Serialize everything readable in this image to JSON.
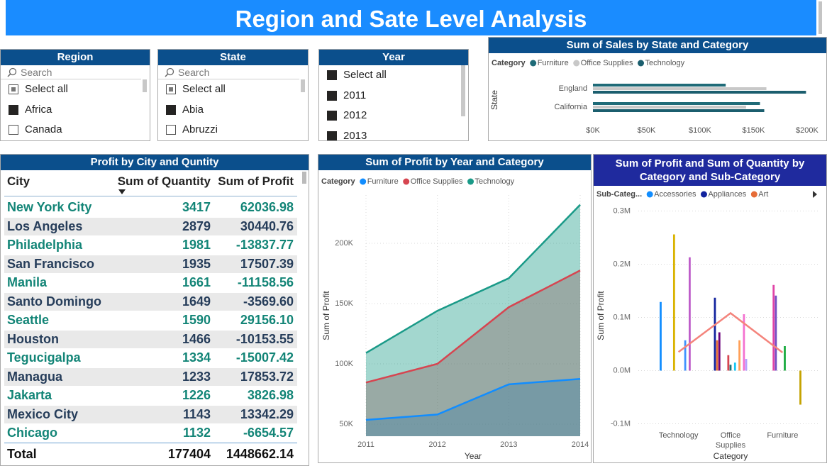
{
  "header": {
    "title": "Region and Sate Level Analysis"
  },
  "slicers": [
    {
      "title": "Region",
      "search": "Search",
      "items": [
        {
          "label": "Select all",
          "state": "partial"
        },
        {
          "label": "Africa",
          "state": "checked"
        },
        {
          "label": "Canada",
          "state": "unchecked"
        }
      ]
    },
    {
      "title": "State",
      "search": "Search",
      "items": [
        {
          "label": "Select all",
          "state": "partial"
        },
        {
          "label": "Abia",
          "state": "checked"
        },
        {
          "label": "Abruzzi",
          "state": "unchecked"
        }
      ]
    },
    {
      "title": "Year",
      "items": [
        {
          "label": "Select all",
          "state": "checked"
        },
        {
          "label": "2011",
          "state": "checked"
        },
        {
          "label": "2012",
          "state": "checked"
        },
        {
          "label": "2013",
          "state": "checked"
        }
      ]
    }
  ],
  "table": {
    "title": "Profit by City and Quntity",
    "columns": [
      "City",
      "Sum of Quantity",
      "Sum of Profit"
    ],
    "sort_column": 1,
    "rows": [
      [
        "New York City",
        "3417",
        "62036.98"
      ],
      [
        "Los Angeles",
        "2879",
        "30440.76"
      ],
      [
        "Philadelphia",
        "1981",
        "-13837.77"
      ],
      [
        "San Francisco",
        "1935",
        "17507.39"
      ],
      [
        "Manila",
        "1661",
        "-11158.56"
      ],
      [
        "Santo Domingo",
        "1649",
        "-3569.60"
      ],
      [
        "Seattle",
        "1590",
        "29156.10"
      ],
      [
        "Houston",
        "1466",
        "-10153.55"
      ],
      [
        "Tegucigalpa",
        "1334",
        "-15007.42"
      ],
      [
        "Managua",
        "1233",
        "17853.72"
      ],
      [
        "Jakarta",
        "1226",
        "3826.98"
      ],
      [
        "Mexico City",
        "1143",
        "13342.29"
      ],
      [
        "Chicago",
        "1132",
        "-6654.57"
      ]
    ],
    "total": [
      "Total",
      "177404",
      "1448662.14"
    ]
  },
  "chart_data": [
    {
      "type": "bar",
      "orientation": "horizontal",
      "title": "Sum of Sales by State and Category",
      "legend_title": "Category",
      "y_label": "State",
      "categories": [
        "England",
        "California"
      ],
      "series": [
        {
          "name": "Furniture",
          "color": "#1f6b78",
          "values": [
            124000,
            156000
          ]
        },
        {
          "name": "Office Supplies",
          "color": "#c8c8c8",
          "values": [
            162000,
            143000
          ]
        },
        {
          "name": "Technology",
          "color": "#1b5e6e",
          "values": [
            199000,
            160000
          ]
        }
      ],
      "xlim": [
        0,
        210000
      ],
      "xticks": [
        {
          "value": 0,
          "label": "$0K"
        },
        {
          "value": 50000,
          "label": "$50K"
        },
        {
          "value": 100000,
          "label": "$100K"
        },
        {
          "value": 150000,
          "label": "$150K"
        },
        {
          "value": 200000,
          "label": "$200K"
        }
      ],
      "grid": false
    },
    {
      "type": "area",
      "stacked": false,
      "title": "Sum of Profit by Year and Category",
      "legend_title": "Category",
      "x_label": "Year",
      "y_label": "Sum of Profit",
      "x": [
        2011,
        2012,
        2013,
        2014
      ],
      "series": [
        {
          "name": "Furniture",
          "color": "#118dff",
          "values": [
            53500,
            58000,
            83000,
            87500
          ]
        },
        {
          "name": "Office Supplies",
          "color": "#d64550",
          "values": [
            84500,
            100000,
            147000,
            177500
          ]
        },
        {
          "name": "Technology",
          "color": "#1a9a88",
          "values": [
            109000,
            144000,
            171000,
            232000
          ]
        }
      ],
      "xlim": [
        2011,
        2014
      ],
      "xticks": [
        2011,
        2012,
        2013,
        2014
      ],
      "ylim": [
        40000,
        240000
      ],
      "yticks": [
        {
          "value": 50000,
          "label": "50K"
        },
        {
          "value": 100000,
          "label": "100K"
        },
        {
          "value": 150000,
          "label": "150K"
        },
        {
          "value": 200000,
          "label": "200K"
        }
      ],
      "grid": true
    },
    {
      "type": "combo",
      "title": "Sum of Profit and Sum of Quantity by Category and Sub-Category",
      "legend_title": "Sub-Categ...",
      "x_label": "Category",
      "y_label": "Sum of Profit",
      "categories": [
        "Technology",
        "Office Supplies",
        "Furniture"
      ],
      "series": [
        {
          "name": "Accessories",
          "color": "#118dff",
          "values": [
            129000,
            null,
            null
          ]
        },
        {
          "name": "Appliances",
          "color": "#12239e",
          "values": [
            null,
            137000,
            null
          ]
        },
        {
          "name": "Art",
          "color": "#e66c37",
          "values": [
            null,
            57000,
            null
          ]
        },
        {
          "color": "#6b007b",
          "values": [
            null,
            72000,
            null
          ]
        },
        {
          "color": "#e044a7",
          "values": [
            null,
            null,
            161000
          ]
        },
        {
          "color": "#744ec2",
          "values": [
            null,
            null,
            141000
          ]
        },
        {
          "color": "#d9b300",
          "values": [
            256000,
            null,
            null
          ]
        },
        {
          "color": "#d64550",
          "values": [
            null,
            29000,
            null
          ]
        },
        {
          "color": "#197278",
          "values": [
            null,
            11000,
            null
          ]
        },
        {
          "color": "#1aab40",
          "values": [
            null,
            null,
            46000
          ]
        },
        {
          "color": "#15c6f4",
          "values": [
            null,
            15000,
            null
          ]
        },
        {
          "color": "#4092ff",
          "values": [
            57000,
            null,
            null
          ]
        },
        {
          "color": "#ffa058",
          "values": [
            null,
            57000,
            null
          ]
        },
        {
          "color": "#be5dc9",
          "values": [
            213000,
            null,
            null
          ]
        },
        {
          "color": "#f472d0",
          "values": [
            null,
            106000,
            null
          ]
        },
        {
          "color": "#b5a1ff",
          "values": [
            null,
            22000,
            null
          ]
        },
        {
          "color": "#c4a200",
          "values": [
            null,
            null,
            -64000
          ]
        },
        {
          "color": "#f4847c",
          "axis": "y2",
          "values": [
            35000,
            108000,
            34000
          ]
        }
      ],
      "ylim": [
        -130000,
        310000
      ],
      "yticks": [
        {
          "value": -100000,
          "label": "-0.1M"
        },
        {
          "value": 0,
          "label": "0.0M"
        },
        {
          "value": 100000,
          "label": "0.1M"
        },
        {
          "value": 200000,
          "label": "0.2M"
        },
        {
          "value": 300000,
          "label": "0.3M"
        }
      ],
      "y2lim": [
        -130000,
        310000
      ],
      "grid": true
    }
  ]
}
